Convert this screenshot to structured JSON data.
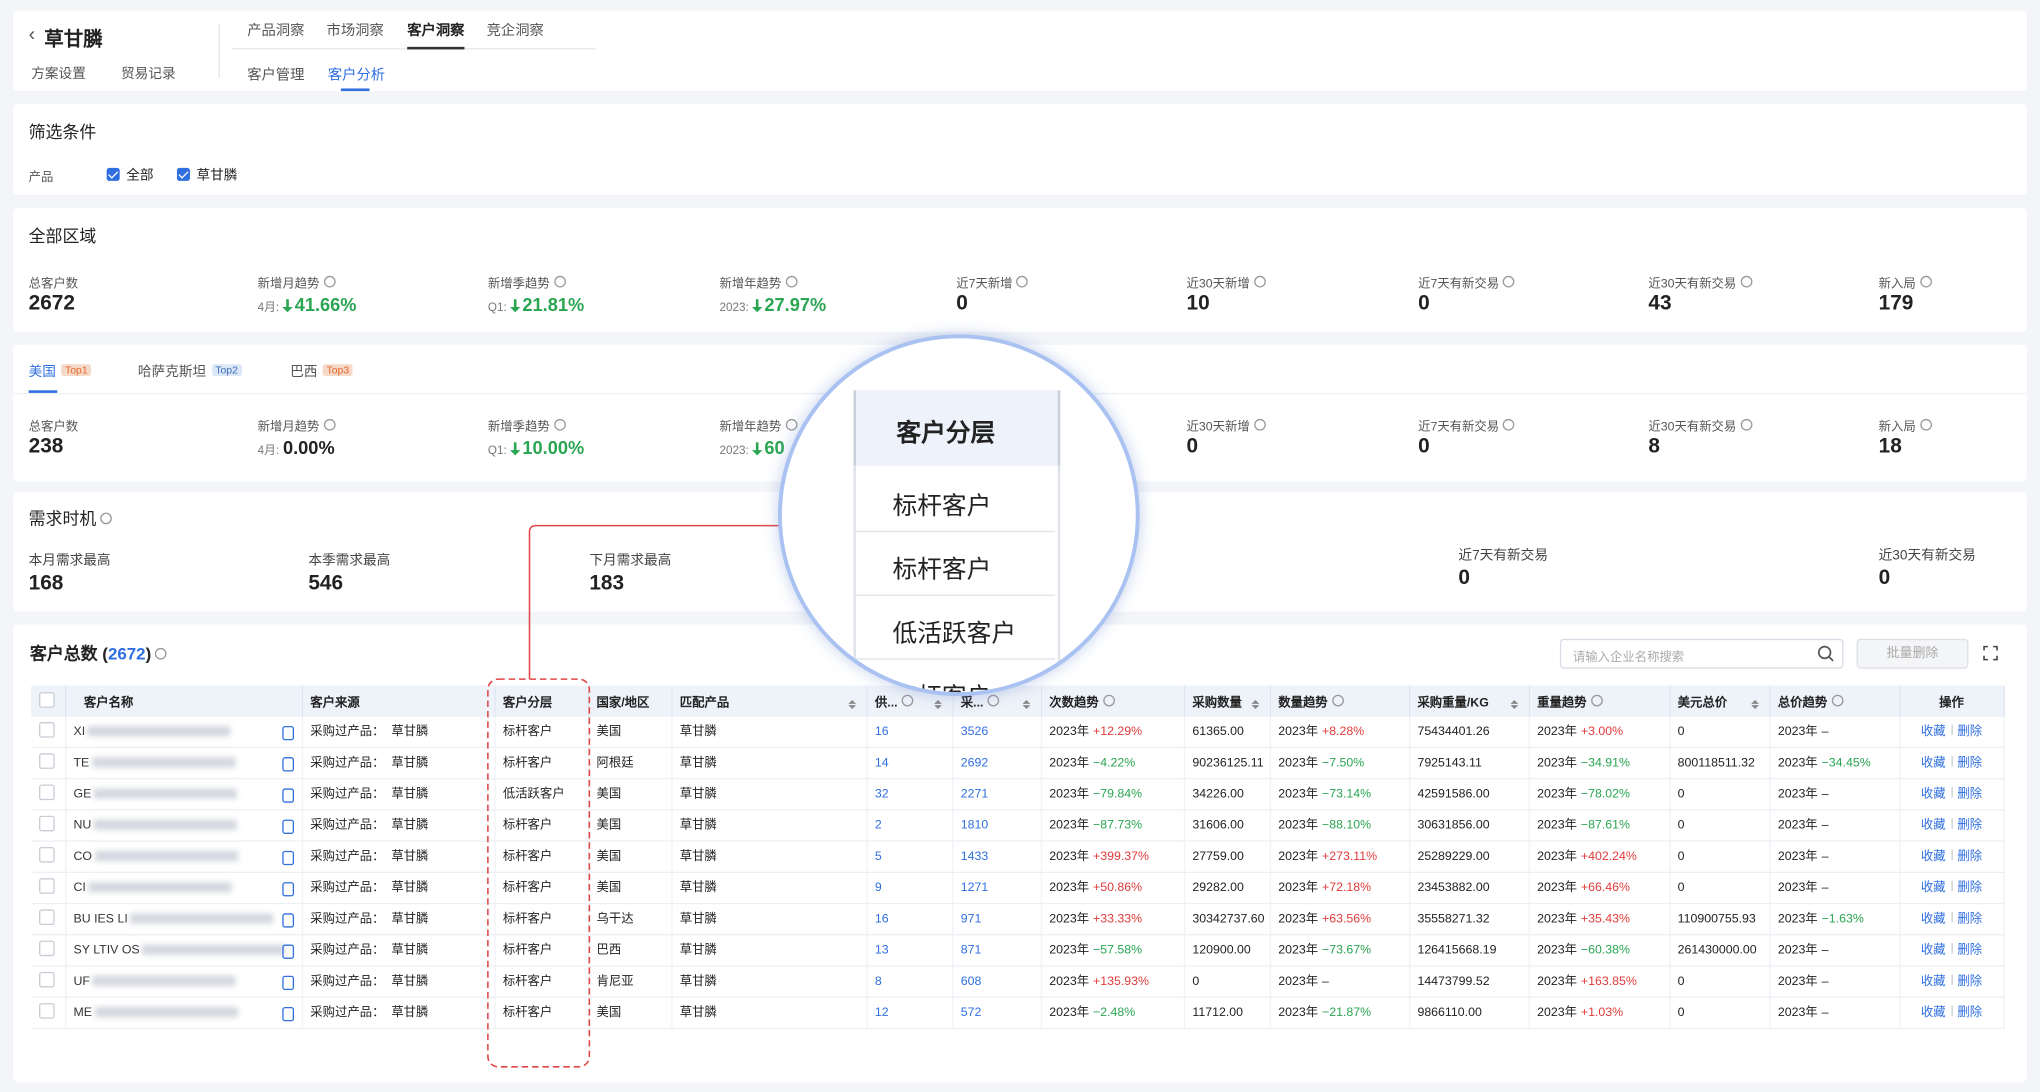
{
  "header": {
    "title": "草甘膦",
    "links": [
      "方案设置",
      "贸易记录"
    ],
    "tabs": [
      "产品洞察",
      "市场洞察",
      "客户洞察",
      "竞企洞察"
    ],
    "active_tab": 2,
    "subtabs": [
      "客户管理",
      "客户分析"
    ],
    "active_subtab": 1
  },
  "filter": {
    "title": "筛选条件",
    "label": "产品",
    "options": [
      "全部",
      "草甘膦"
    ]
  },
  "region": {
    "title": "全部区域",
    "stats": [
      {
        "label": "总客户数",
        "value": "2672"
      },
      {
        "label": "新增月趋势",
        "prefix": "4月:",
        "value": "41.66%",
        "arrow": "down"
      },
      {
        "label": "新增季趋势",
        "prefix": "Q1:",
        "value": "21.81%",
        "arrow": "down"
      },
      {
        "label": "新增年趋势",
        "prefix": "2023:",
        "value": "27.97%",
        "arrow": "down"
      },
      {
        "label": "近7天新增",
        "value": "0"
      },
      {
        "label": "近30天新增",
        "value": "10"
      },
      {
        "label": "近7天有新交易",
        "value": "0"
      },
      {
        "label": "近30天有新交易",
        "value": "43"
      },
      {
        "label": "新入局",
        "value": "179"
      }
    ]
  },
  "countries": {
    "tabs": [
      {
        "name": "美国",
        "badge": "Top1"
      },
      {
        "name": "哈萨克斯坦",
        "badge": "Top2"
      },
      {
        "name": "巴西",
        "badge": "Top3"
      }
    ],
    "active": 0,
    "stats": [
      {
        "label": "总客户数",
        "value": "238"
      },
      {
        "label": "新增月趋势",
        "prefix": "4月:",
        "value": "0.00%"
      },
      {
        "label": "新增季趋势",
        "prefix": "Q1:",
        "value": "10.00%",
        "arrow": "down"
      },
      {
        "label": "新增年趋势",
        "prefix": "2023:",
        "value": "60",
        "arrow": "down"
      },
      null,
      {
        "label": "近30天新增",
        "value": "0"
      },
      {
        "label": "近7天有新交易",
        "value": "0"
      },
      {
        "label": "近30天有新交易",
        "value": "8"
      },
      {
        "label": "新入局",
        "value": "18"
      }
    ]
  },
  "demand": {
    "title": "需求时机",
    "items": [
      {
        "label": "本月需求最高",
        "value": "168"
      },
      {
        "label": "本季需求最高",
        "value": "546"
      },
      {
        "label": "下月需求最高",
        "value": "183"
      },
      {
        "label": "近7天有新交易",
        "value": "0"
      },
      {
        "label": "近30天有新交易",
        "value": "0"
      }
    ]
  },
  "table": {
    "title": "客户总数",
    "count": "2672",
    "search_placeholder": "请输入企业名称搜索",
    "batch_button": "批量删除",
    "columns": [
      "客户名称",
      "客户来源",
      "客户分层",
      "国家/地区",
      "匹配产品",
      "供...",
      "采...",
      "次数趋势",
      "采购数量",
      "数量趋势",
      "采购重量/KG",
      "重量趋势",
      "美元总价",
      "总价趋势",
      "操作"
    ],
    "actions": [
      "收藏",
      "删除"
    ],
    "rows": [
      [
        "XI",
        "采购过产品：  草甘膦",
        "标杆客户",
        "美国",
        "草甘膦",
        "16",
        "3526",
        [
          "2023年",
          "+12.29%"
        ],
        "61365.00",
        [
          "2023年",
          "+8.28%"
        ],
        "75434401.26",
        [
          "2023年",
          "+3.00%"
        ],
        "0",
        [
          "2023年",
          "–"
        ]
      ],
      [
        "TE",
        "采购过产品：  草甘膦",
        "标杆客户",
        "阿根廷",
        "草甘膦",
        "14",
        "2692",
        [
          "2023年",
          "−4.22%"
        ],
        "90236125.11",
        [
          "2023年",
          "−7.50%"
        ],
        "7925143.11",
        [
          "2023年",
          "−34.91%"
        ],
        "800118511.32",
        [
          "2023年",
          "−34.45%"
        ]
      ],
      [
        "GE",
        "采购过产品：  草甘膦",
        "低活跃客户",
        "美国",
        "草甘膦",
        "32",
        "2271",
        [
          "2023年",
          "−79.84%"
        ],
        "34226.00",
        [
          "2023年",
          "−73.14%"
        ],
        "42591586.00",
        [
          "2023年",
          "−78.02%"
        ],
        "0",
        [
          "2023年",
          "–"
        ]
      ],
      [
        "NU",
        "采购过产品：  草甘膦",
        "标杆客户",
        "美国",
        "草甘膦",
        "2",
        "1810",
        [
          "2023年",
          "−87.73%"
        ],
        "31606.00",
        [
          "2023年",
          "−88.10%"
        ],
        "30631856.00",
        [
          "2023年",
          "−87.61%"
        ],
        "0",
        [
          "2023年",
          "–"
        ]
      ],
      [
        "CO",
        "采购过产品：  草甘膦",
        "标杆客户",
        "美国",
        "草甘膦",
        "5",
        "1433",
        [
          "2023年",
          "+399.37%"
        ],
        "27759.00",
        [
          "2023年",
          "+273.11%"
        ],
        "25289229.00",
        [
          "2023年",
          "+402.24%"
        ],
        "0",
        [
          "2023年",
          "–"
        ]
      ],
      [
        "CI",
        "采购过产品：  草甘膦",
        "标杆客户",
        "美国",
        "草甘膦",
        "9",
        "1271",
        [
          "2023年",
          "+50.86%"
        ],
        "29282.00",
        [
          "2023年",
          "+72.18%"
        ],
        "23453882.00",
        [
          "2023年",
          "+66.46%"
        ],
        "0",
        [
          "2023年",
          "–"
        ]
      ],
      [
        "BU IES LI",
        "采购过产品：  草甘膦",
        "标杆客户",
        "乌干达",
        "草甘膦",
        "16",
        "971",
        [
          "2023年",
          "+33.33%"
        ],
        "30342737.60",
        [
          "2023年",
          "+63.56%"
        ],
        "35558271.32",
        [
          "2023年",
          "+35.43%"
        ],
        "110900755.93",
        [
          "2023年",
          "−1.63%"
        ]
      ],
      [
        "SY LTIV OS",
        "采购过产品：  草甘膦",
        "标杆客户",
        "巴西",
        "草甘膦",
        "13",
        "871",
        [
          "2023年",
          "−57.58%"
        ],
        "120900.00",
        [
          "2023年",
          "−73.67%"
        ],
        "126415668.19",
        [
          "2023年",
          "−60.38%"
        ],
        "261430000.00",
        [
          "2023年",
          "–"
        ]
      ],
      [
        "UF",
        "采购过产品：  草甘膦",
        "标杆客户",
        "肯尼亚",
        "草甘膦",
        "8",
        "608",
        [
          "2023年",
          "+135.93%"
        ],
        "0",
        [
          "2023年",
          "–"
        ],
        "14473799.52",
        [
          "2023年",
          "+163.85%"
        ],
        "0",
        [
          "2023年",
          "–"
        ]
      ],
      [
        "ME",
        "采购过产品：  草甘膦",
        "标杆客户",
        "美国",
        "草甘膦",
        "12",
        "572",
        [
          "2023年",
          "−2.48%"
        ],
        "11712.00",
        [
          "2023年",
          "−21.87%"
        ],
        "9866110.00",
        [
          "2023年",
          "+1.03%"
        ],
        "0",
        [
          "2023年",
          "–"
        ]
      ]
    ]
  },
  "magnifier": {
    "header": "客户分层",
    "items": [
      "标杆客户",
      "标杆客户",
      "低活跃客户",
      "标杆客户"
    ]
  }
}
